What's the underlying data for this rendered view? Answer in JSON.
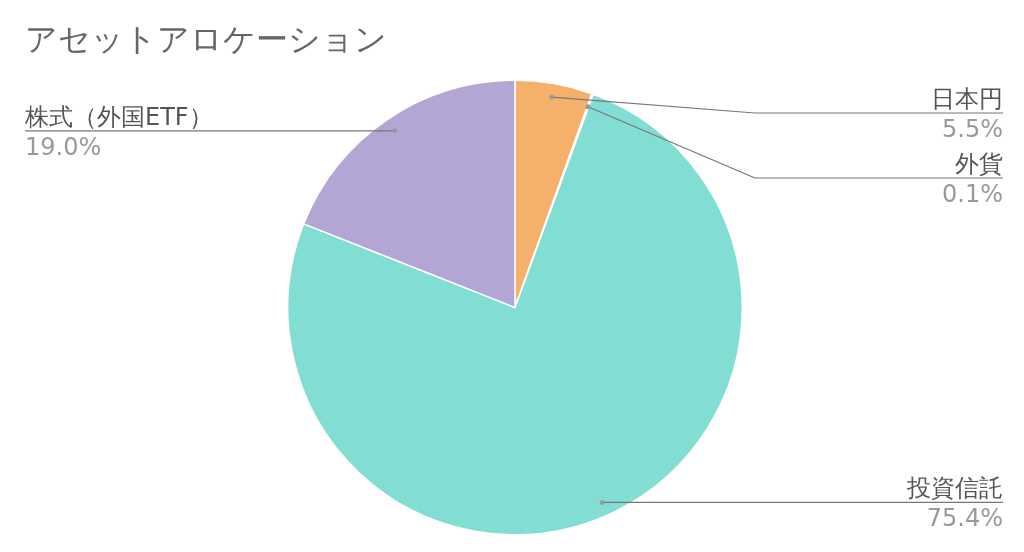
{
  "chart_data": {
    "type": "pie",
    "title": "アセットアロケーション",
    "categories": [
      "日本円",
      "外貨",
      "投資信託",
      "株式（外国ETF）"
    ],
    "values": [
      5.5,
      0.1,
      75.4,
      19.0
    ],
    "colors": [
      "#f5b06b",
      "#f2a38f",
      "#82ddd3",
      "#b3a6d5"
    ],
    "value_labels": [
      "5.5%",
      "0.1%",
      "75.4%",
      "19.0%"
    ],
    "legend": false
  }
}
